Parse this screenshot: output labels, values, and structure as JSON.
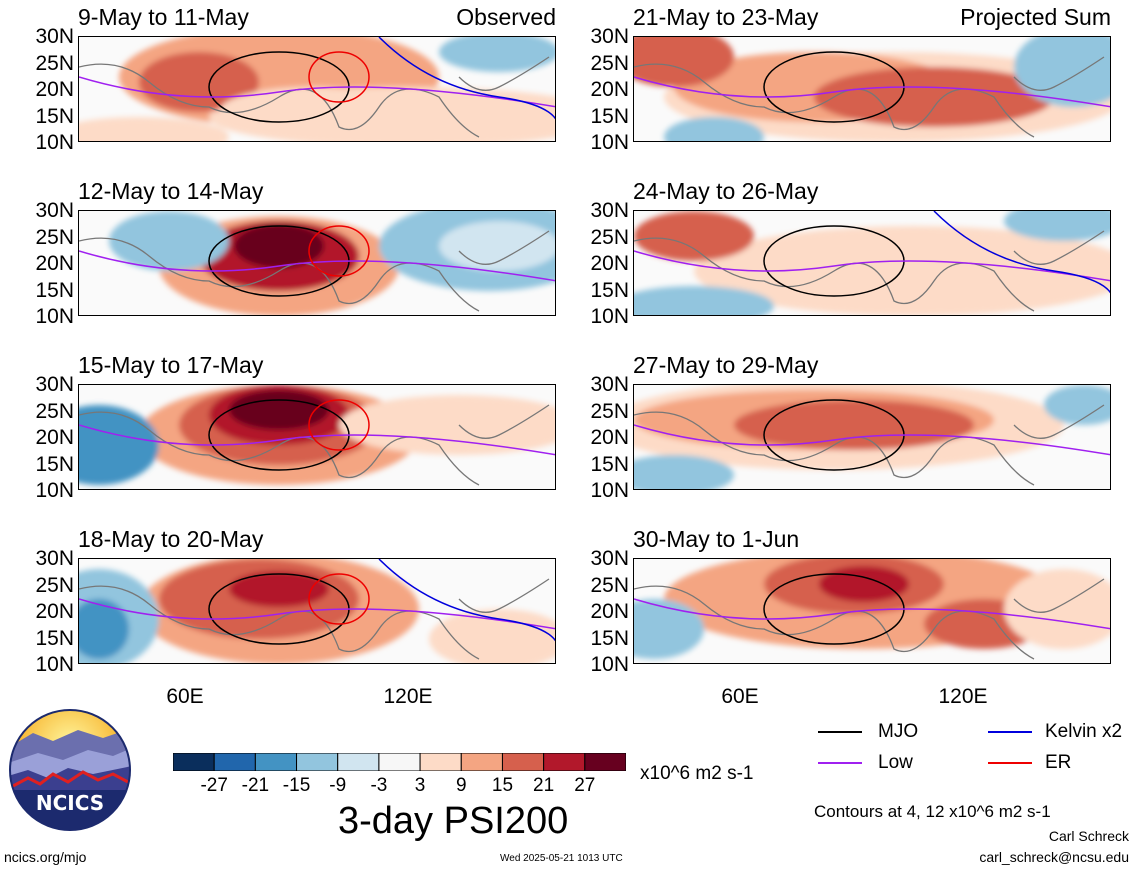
{
  "panels": [
    {
      "title": "9-May to 11-May",
      "tag": "Observed"
    },
    {
      "title": "21-May to 23-May",
      "tag": "Projected Sum"
    },
    {
      "title": "12-May to 14-May",
      "tag": ""
    },
    {
      "title": "24-May to 26-May",
      "tag": ""
    },
    {
      "title": "15-May to 17-May",
      "tag": ""
    },
    {
      "title": "27-May to 29-May",
      "tag": ""
    },
    {
      "title": "18-May to 20-May",
      "tag": ""
    },
    {
      "title": "30-May to 1-Jun",
      "tag": ""
    }
  ],
  "lat_labels": [
    "30N",
    "25N",
    "20N",
    "15N",
    "10N"
  ],
  "lon_labels": [
    "60E",
    "120E"
  ],
  "colorbar": {
    "colors": [
      "#0a2e5c",
      "#2166ac",
      "#4393c3",
      "#92c5de",
      "#d1e5f0",
      "#f7f7f7",
      "#fddbc7",
      "#f4a582",
      "#d6604d",
      "#b2182b",
      "#67001f"
    ],
    "ticks": [
      "-27",
      "-21",
      "-15",
      "-9",
      "-3",
      "3",
      "9",
      "15",
      "21",
      "27"
    ],
    "units": "x10^6 m2 s-1"
  },
  "main_title": "3-day PSI200",
  "legend": [
    {
      "label": "MJO",
      "color": "#000000"
    },
    {
      "label": "Kelvin x2",
      "color": "#0000dd"
    },
    {
      "label": "Low",
      "color": "#a020f0"
    },
    {
      "label": "ER",
      "color": "#ee0000"
    }
  ],
  "contour_note": "Contours at 4, 12 x10^6 m2 s-1",
  "author": "Carl Schreck",
  "email": "carl_schreck@ncsu.edu",
  "site": "ncics.org/mjo",
  "timestamp": "Wed 2025-05-21 1013 UTC",
  "logo_text": "NCICS"
}
